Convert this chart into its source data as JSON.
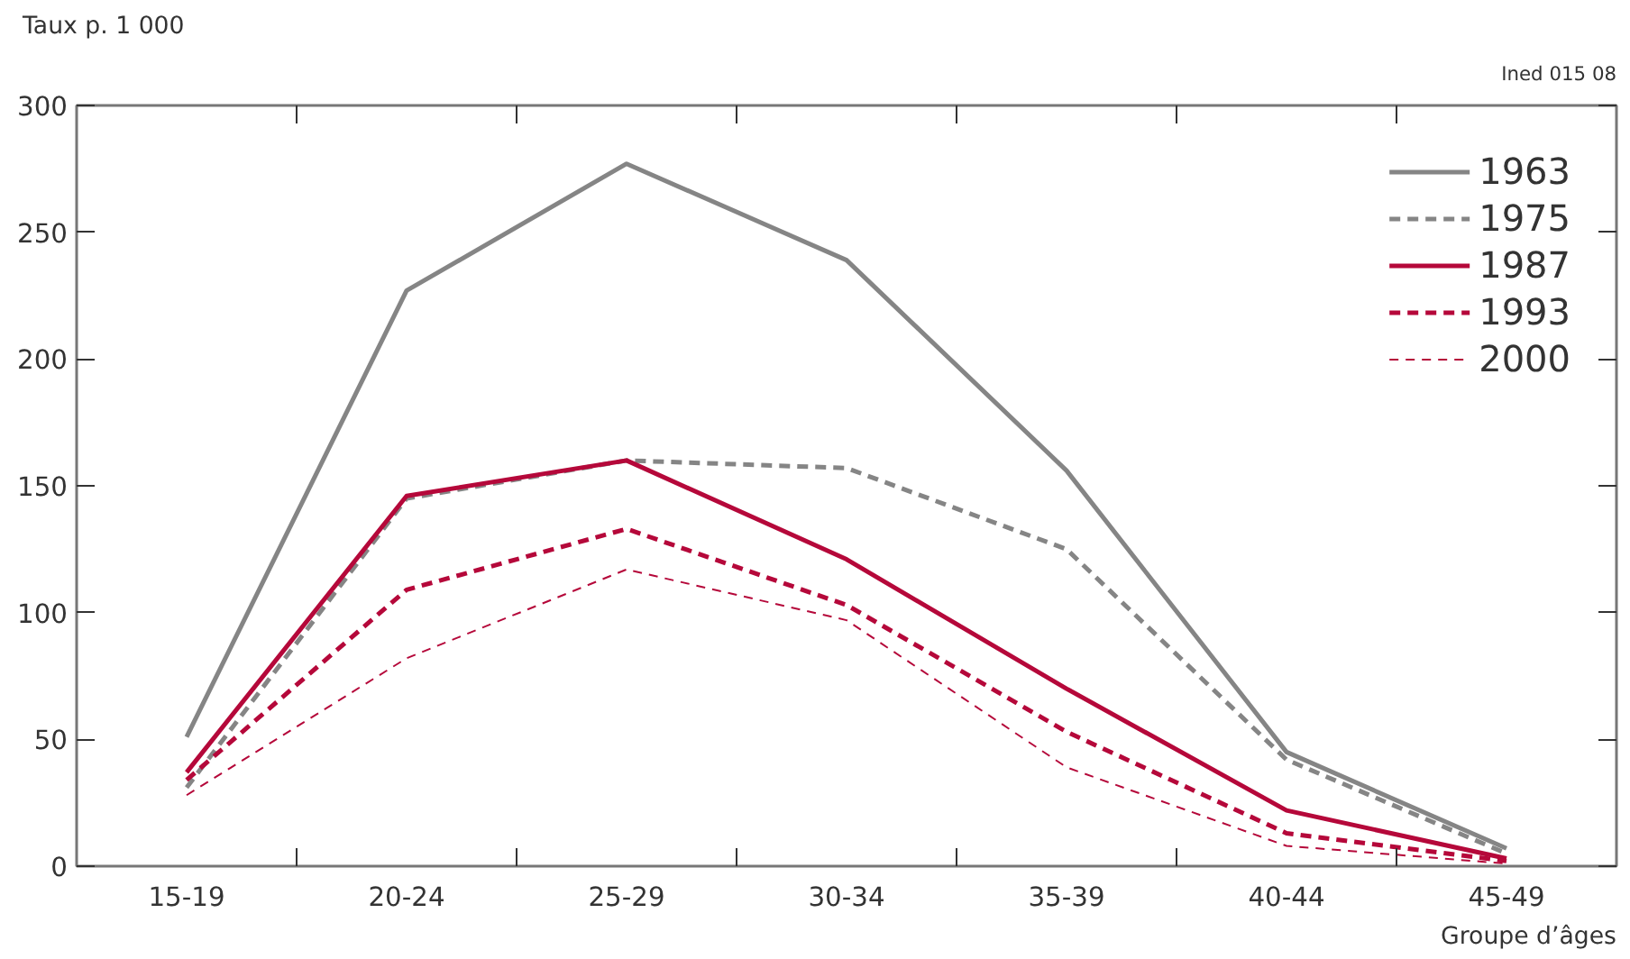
{
  "chart_data": {
    "type": "line",
    "ylabel": "Taux p. 1 000",
    "xlabel": "Groupe d’âges",
    "annotations": [
      "Ined 015 08"
    ],
    "categories": [
      "15-19",
      "20-24",
      "25-29",
      "30-34",
      "35-39",
      "40-44",
      "45-49"
    ],
    "ylim": [
      0,
      300
    ],
    "yticks": [
      0,
      50,
      100,
      150,
      200,
      250,
      300
    ],
    "grid": false,
    "legend": "top right",
    "series": [
      {
        "name": "1963",
        "color": "#858585",
        "line_style": "solid",
        "values": [
          51,
          227,
          277,
          239,
          156,
          45,
          7
        ]
      },
      {
        "name": "1975",
        "color": "#858585",
        "line_style": "dashed",
        "values": [
          31,
          145,
          160,
          157,
          125,
          42,
          5
        ]
      },
      {
        "name": "1987",
        "color": "#b5083a",
        "line_style": "solid",
        "values": [
          37,
          146,
          160,
          121,
          70,
          22,
          3
        ]
      },
      {
        "name": "1993",
        "color": "#b5083a",
        "line_style": "dashed",
        "values": [
          34,
          109,
          133,
          103,
          53,
          13,
          2
        ]
      },
      {
        "name": "2000",
        "color": "#b5083a",
        "line_style": "dotted",
        "values": [
          28,
          82,
          117,
          97,
          39,
          8,
          1
        ]
      }
    ]
  }
}
